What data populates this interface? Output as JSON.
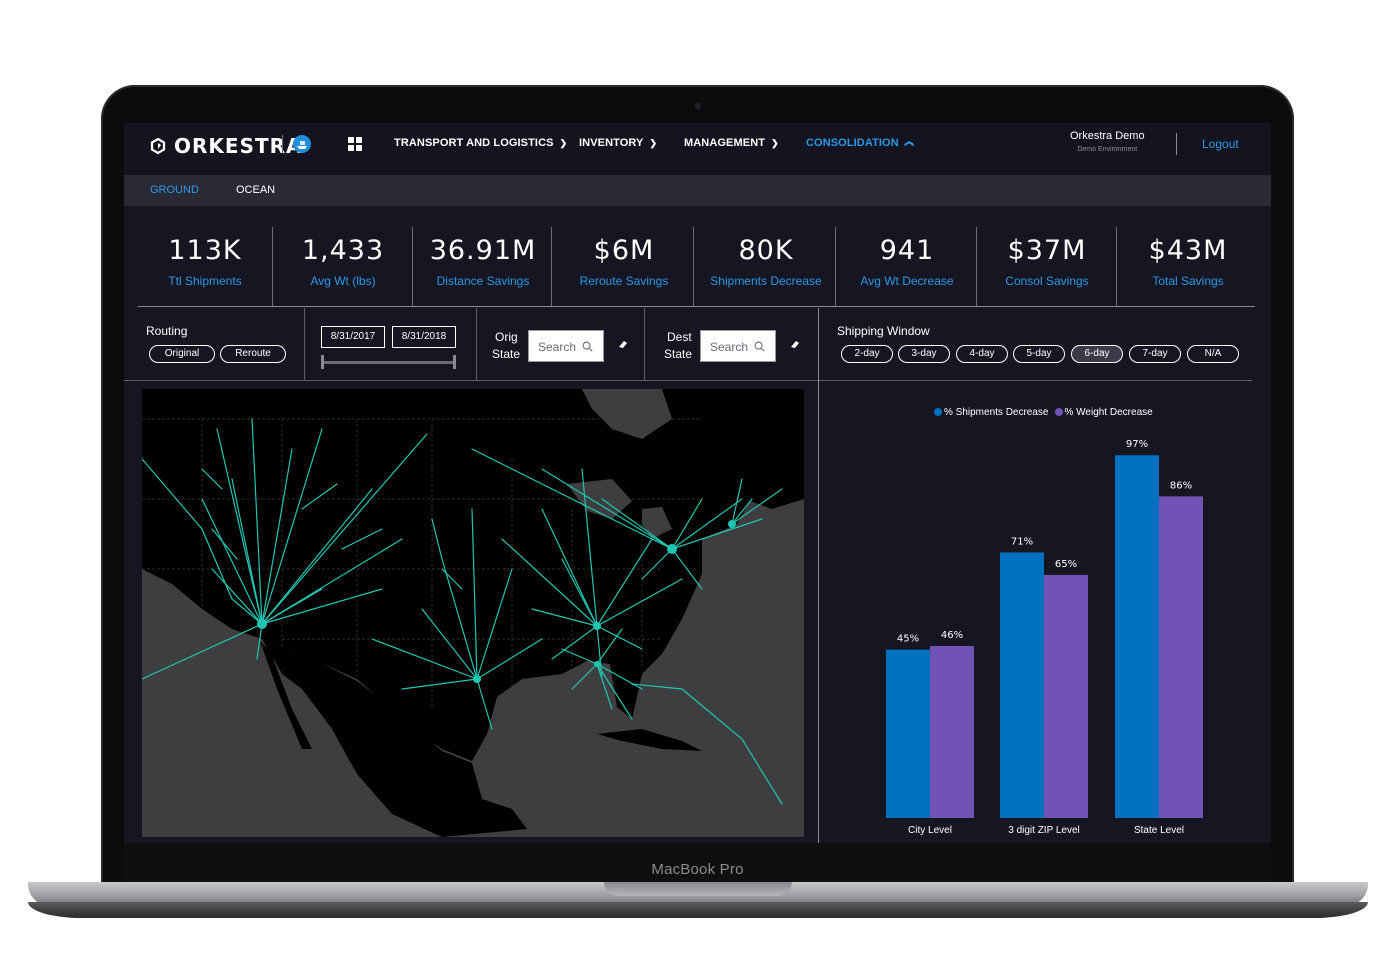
{
  "device": {
    "label": "MacBook Pro"
  },
  "nav": {
    "brand": "ORKESTRA",
    "items": [
      {
        "label": "TRANSPORT AND LOGISTICS",
        "active": false
      },
      {
        "label": "INVENTORY",
        "active": false
      },
      {
        "label": "MANAGEMENT",
        "active": false
      },
      {
        "label": "CONSOLIDATION",
        "active": true
      }
    ],
    "user_name": "Orkestra Demo",
    "user_env": "Demo Environment",
    "logout": "Logout"
  },
  "subnav": {
    "tabs": [
      {
        "label": "GROUND",
        "active": true
      },
      {
        "label": "OCEAN",
        "active": false
      }
    ]
  },
  "kpis": [
    {
      "value": "113K",
      "label": "Ttl Shipments"
    },
    {
      "value": "1,433",
      "label": "Avg Wt (lbs)"
    },
    {
      "value": "36.91M",
      "label": "Distance Savings"
    },
    {
      "value": "$6M",
      "label": "Reroute Savings"
    },
    {
      "value": "80K",
      "label": "Shipments Decrease"
    },
    {
      "value": "941",
      "label": "Avg Wt Decrease"
    },
    {
      "value": "$37M",
      "label": "Consol Savings"
    },
    {
      "value": "$43M",
      "label": "Total Savings"
    }
  ],
  "filters": {
    "routing_label": "Routing",
    "routing_options": [
      "Original",
      "Reroute"
    ],
    "date_start": "8/31/2017",
    "date_end": "8/31/2018",
    "orig_label_1": "Orig",
    "orig_label_2": "State",
    "dest_label_1": "Dest",
    "dest_label_2": "State",
    "search_placeholder": "Search",
    "shipping_window_label": "Shipping Window",
    "shipping_window_options": [
      "2-day",
      "3-day",
      "4-day",
      "5-day",
      "6-day",
      "7-day",
      "N/A"
    ],
    "shipping_window_selected": "6-day"
  },
  "colors": {
    "accent": "#2c98e6",
    "series_blue": "#0070c0",
    "series_purple": "#7153b5",
    "route": "#1fc6b4"
  },
  "chart_data": {
    "type": "bar",
    "categories": [
      "City Level",
      "3 digit ZIP Level",
      "State Level"
    ],
    "series": [
      {
        "name": "% Shipments Decrease",
        "values": [
          45,
          71,
          97
        ],
        "labels": [
          "45%",
          "71%",
          "97%"
        ]
      },
      {
        "name": "% Weight Decrease",
        "values": [
          46,
          65,
          86
        ],
        "labels": [
          "46%",
          "65%",
          "86%"
        ]
      }
    ],
    "ylim": [
      0,
      100
    ],
    "legend": "top",
    "title": "",
    "xlabel": "",
    "ylabel": ""
  }
}
